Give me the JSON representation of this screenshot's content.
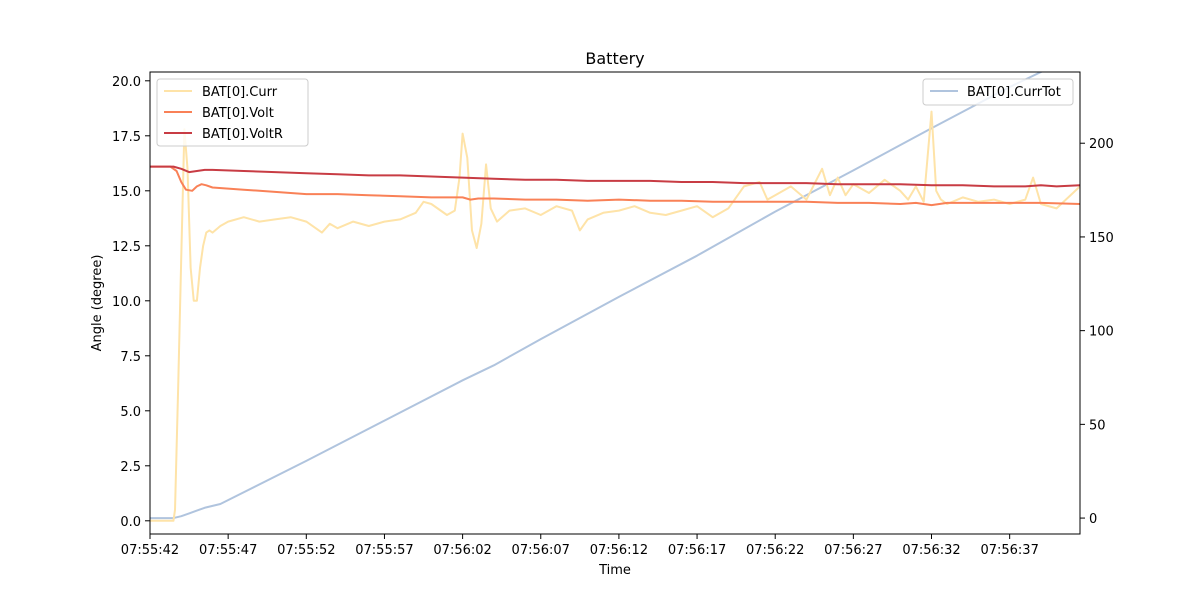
{
  "chart_data": {
    "type": "line",
    "title": "Battery",
    "xlabel": "Time",
    "ylabel": "Angle (degree)",
    "xlim": [
      0,
      59.5
    ],
    "ylim": [
      -0.6,
      20.4
    ],
    "y2lim": [
      -8.5,
      238
    ],
    "x_tick_labels": [
      "07:55:42",
      "07:55:47",
      "07:55:52",
      "07:55:57",
      "07:56:02",
      "07:56:07",
      "07:56:12",
      "07:56:17",
      "07:56:22",
      "07:56:27",
      "07:56:32",
      "07:56:37"
    ],
    "x_tick_values": [
      0,
      5,
      10,
      15,
      20,
      25,
      30,
      35,
      40,
      45,
      50,
      55
    ],
    "y_ticks": [
      0.0,
      2.5,
      5.0,
      7.5,
      10.0,
      12.5,
      15.0,
      17.5,
      20.0
    ],
    "y_tick_labels": [
      "0.0",
      "2.5",
      "5.0",
      "7.5",
      "10.0",
      "12.5",
      "15.0",
      "17.5",
      "20.0"
    ],
    "y2_ticks": [
      0,
      50,
      100,
      150,
      200
    ],
    "y2_tick_labels": [
      "0",
      "50",
      "100",
      "150",
      "200"
    ],
    "grid": false,
    "legend_left": {
      "placement": "upper-left",
      "entries": [
        "BAT[0].Curr",
        "BAT[0].Volt",
        "BAT[0].VoltR"
      ]
    },
    "legend_right": {
      "placement": "upper-right",
      "entries": [
        "BAT[0].CurrTot"
      ]
    },
    "series": [
      {
        "name": "BAT[0].Curr",
        "axis": "left",
        "color": "#fee3a8",
        "x": [
          0,
          1.5,
          1.6,
          1.8,
          2.0,
          2.2,
          2.4,
          2.6,
          2.8,
          3.0,
          3.2,
          3.4,
          3.6,
          3.8,
          4.0,
          4.5,
          5,
          6,
          7,
          8,
          9,
          10,
          11,
          11.5,
          12,
          13,
          14,
          15,
          16,
          17,
          17.5,
          18,
          19,
          19.5,
          19.8,
          20,
          20.3,
          20.6,
          20.9,
          21.2,
          21.5,
          21.8,
          22.2,
          23,
          24,
          25,
          26,
          27,
          27.5,
          28,
          29,
          30,
          31,
          32,
          33,
          34,
          35,
          36,
          37,
          38,
          39,
          39.5,
          40,
          41,
          42,
          43,
          43.5,
          44,
          44.5,
          45,
          46,
          47,
          48,
          48.5,
          49,
          49.5,
          50,
          50.3,
          50.6,
          51,
          52,
          53,
          54,
          55,
          56,
          56.5,
          57,
          58,
          59.5
        ],
        "y": [
          0,
          0,
          0.5,
          6,
          12,
          17.8,
          16,
          11.5,
          10,
          10,
          11.5,
          12.5,
          13.1,
          13.2,
          13.1,
          13.4,
          13.6,
          13.8,
          13.6,
          13.7,
          13.8,
          13.6,
          13.1,
          13.5,
          13.3,
          13.6,
          13.4,
          13.6,
          13.7,
          14.0,
          14.5,
          14.4,
          13.9,
          14.1,
          15.6,
          17.6,
          16.5,
          13.2,
          12.4,
          13.5,
          16.2,
          14.2,
          13.6,
          14.1,
          14.2,
          13.9,
          14.3,
          14.1,
          13.2,
          13.7,
          14.0,
          14.1,
          14.3,
          14.0,
          13.9,
          14.1,
          14.3,
          13.8,
          14.2,
          15.2,
          15.4,
          14.6,
          14.8,
          15.2,
          14.6,
          16.0,
          14.8,
          15.6,
          14.8,
          15.3,
          14.9,
          15.5,
          15.0,
          14.6,
          15.2,
          14.5,
          18.6,
          15.0,
          14.6,
          14.4,
          14.7,
          14.5,
          14.6,
          14.4,
          14.6,
          15.6,
          14.4,
          14.2,
          15.2
        ]
      },
      {
        "name": "BAT[0].Volt",
        "axis": "left",
        "color": "#f98157",
        "x": [
          0,
          1,
          1.3,
          1.7,
          2.0,
          2.3,
          2.7,
          3.0,
          3.3,
          3.6,
          4,
          5,
          6,
          7,
          8,
          9,
          10,
          12,
          14,
          16,
          18,
          19,
          20,
          20.5,
          21,
          22,
          24,
          26,
          28,
          30,
          32,
          34,
          36,
          38,
          40,
          42,
          44,
          46,
          48,
          49,
          49.5,
          50,
          51,
          53,
          55,
          57,
          59.5
        ],
        "y": [
          16.1,
          16.1,
          16.1,
          15.9,
          15.4,
          15.05,
          15.0,
          15.2,
          15.3,
          15.25,
          15.15,
          15.1,
          15.05,
          15.0,
          14.95,
          14.9,
          14.85,
          14.85,
          14.8,
          14.75,
          14.7,
          14.7,
          14.7,
          14.6,
          14.65,
          14.65,
          14.6,
          14.6,
          14.55,
          14.6,
          14.55,
          14.55,
          14.5,
          14.5,
          14.5,
          14.5,
          14.45,
          14.45,
          14.4,
          14.45,
          14.4,
          14.35,
          14.45,
          14.45,
          14.45,
          14.45,
          14.4
        ]
      },
      {
        "name": "BAT[0].VoltR",
        "axis": "left",
        "color": "#c83c44",
        "x": [
          0,
          1,
          1.5,
          2.0,
          2.5,
          3.0,
          3.5,
          4,
          6,
          8,
          10,
          12,
          14,
          16,
          18,
          20,
          22,
          24,
          26,
          28,
          30,
          32,
          34,
          36,
          38,
          40,
          42,
          44,
          46,
          48,
          50,
          52,
          54,
          56,
          57,
          58,
          59.5
        ],
        "y": [
          16.1,
          16.1,
          16.1,
          16.0,
          15.85,
          15.9,
          15.95,
          15.95,
          15.9,
          15.85,
          15.8,
          15.75,
          15.7,
          15.7,
          15.65,
          15.6,
          15.55,
          15.5,
          15.5,
          15.45,
          15.45,
          15.45,
          15.4,
          15.4,
          15.35,
          15.35,
          15.35,
          15.3,
          15.3,
          15.3,
          15.25,
          15.25,
          15.2,
          15.2,
          15.25,
          15.2,
          15.25
        ]
      },
      {
        "name": "BAT[0].CurrTot",
        "axis": "right",
        "color": "#b0c4de",
        "x": [
          0,
          1.5,
          2.0,
          2.5,
          3.0,
          3.5,
          4.5,
          10,
          15,
          20,
          21,
          22,
          25,
          30,
          35,
          40,
          45,
          50,
          55,
          59.5
        ],
        "y": [
          0,
          0,
          1,
          2.5,
          4,
          5.5,
          7.5,
          30.5,
          52,
          73.5,
          77.5,
          81.5,
          95.5,
          118,
          140,
          163.5,
          185.5,
          208,
          230,
          248
        ]
      }
    ]
  }
}
